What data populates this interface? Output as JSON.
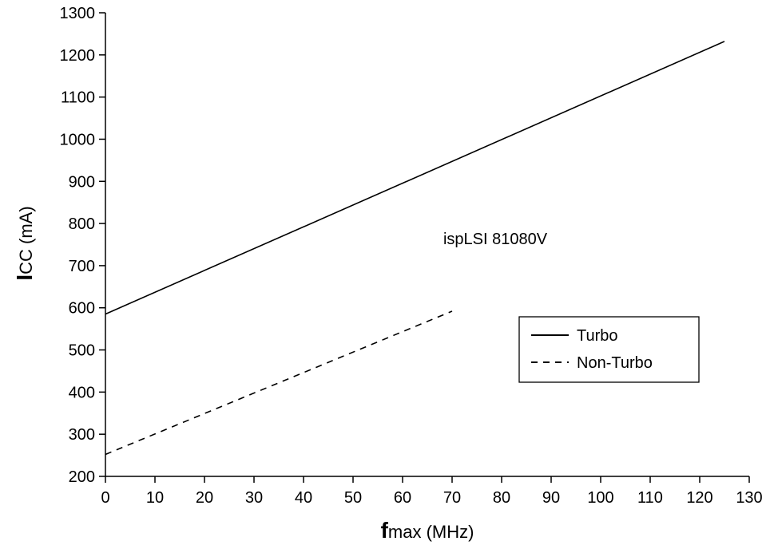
{
  "chart_data": {
    "type": "line",
    "x_range": [
      0,
      130
    ],
    "y_range": [
      200,
      1300
    ],
    "x_ticks": [
      0,
      10,
      20,
      30,
      40,
      50,
      60,
      70,
      80,
      90,
      100,
      110,
      120,
      130
    ],
    "y_ticks": [
      200,
      300,
      400,
      500,
      600,
      700,
      800,
      900,
      1000,
      1100,
      1200,
      1300
    ],
    "xlabel": {
      "main": "f",
      "sub": "max",
      "unit": " (MHz)"
    },
    "ylabel": {
      "main": "I",
      "sub": "CC",
      "unit": " (mA)"
    },
    "annotation": "ispLSI 81080V",
    "grid": false,
    "legend_position": "right",
    "series": [
      {
        "name": "Turbo",
        "style": "solid",
        "x": [
          0,
          125
        ],
        "y": [
          585,
          1232
        ],
        "color": "#000000"
      },
      {
        "name": "Non-Turbo",
        "style": "dashed",
        "x": [
          0,
          70
        ],
        "y": [
          252,
          592
        ],
        "color": "#000000"
      }
    ]
  }
}
